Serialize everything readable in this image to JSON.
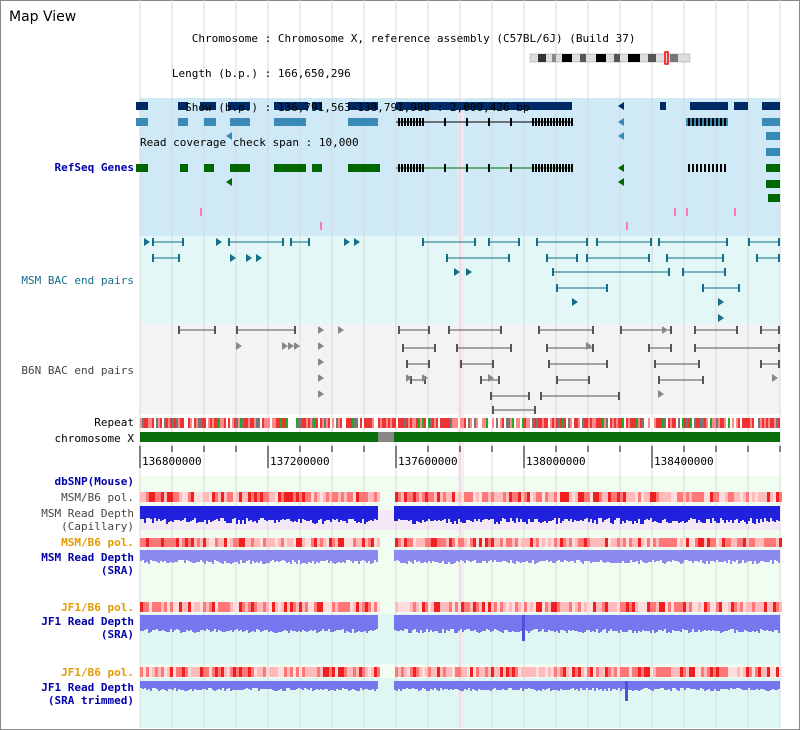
{
  "window": {
    "title": "Map View"
  },
  "info": {
    "rows": [
      {
        "key": "Chromosome",
        "value": "Chromosome X, reference assembly (C57BL/6J) (Build 37)"
      },
      {
        "key": "Length (b.p.)",
        "value": "166,650,296"
      },
      {
        "key": "Show (b.p.)",
        "value": "136,791,563-138,791,988 : 2,000,426 bp"
      },
      {
        "key": "Read coverage check span",
        "value": "10,000"
      }
    ]
  },
  "tracks": {
    "refseq": "RefSeq Genes",
    "msm_bac": "MSM BAC end pairs",
    "b6n_bac": "B6N BAC end pairs",
    "repeat": "Repeat",
    "chromosome": "chromosome X",
    "dbsnp": "dbSNP(Mouse)",
    "msm_b6_pol_cap": "MSM/B6 pol.",
    "msm_depth_cap": "MSM Read Depth\n(Capillary)",
    "msm_b6_pol_sra": "MSM/B6 pol.",
    "msm_depth_sra": "MSM Read Depth\n(SRA)",
    "jf1_b6_pol": "JF1/B6 pol.",
    "jf1_depth_sra": "JF1 Read Depth\n(SRA)",
    "jf1_b6_pol_trim": "JF1/B6 pol.",
    "jf1_depth_trim": "JF1 Read Depth\n(SRA trimmed)"
  },
  "axis": {
    "ticks": [
      "136800000",
      "137200000",
      "137600000",
      "138000000",
      "138400000"
    ]
  },
  "colors": {
    "gene_dark": "#002a66",
    "gene_mid": "#3a8ab8",
    "gene_green": "#006600",
    "refseq_bg": "#cfe9f7",
    "msm_bg": "#e3f7f7",
    "b6n_bg": "#f3f3f5",
    "depth_blue": "#2020dd",
    "depth_light": "#8a8af0",
    "pol_red": "#f04040",
    "orange": "#e49a00"
  }
}
